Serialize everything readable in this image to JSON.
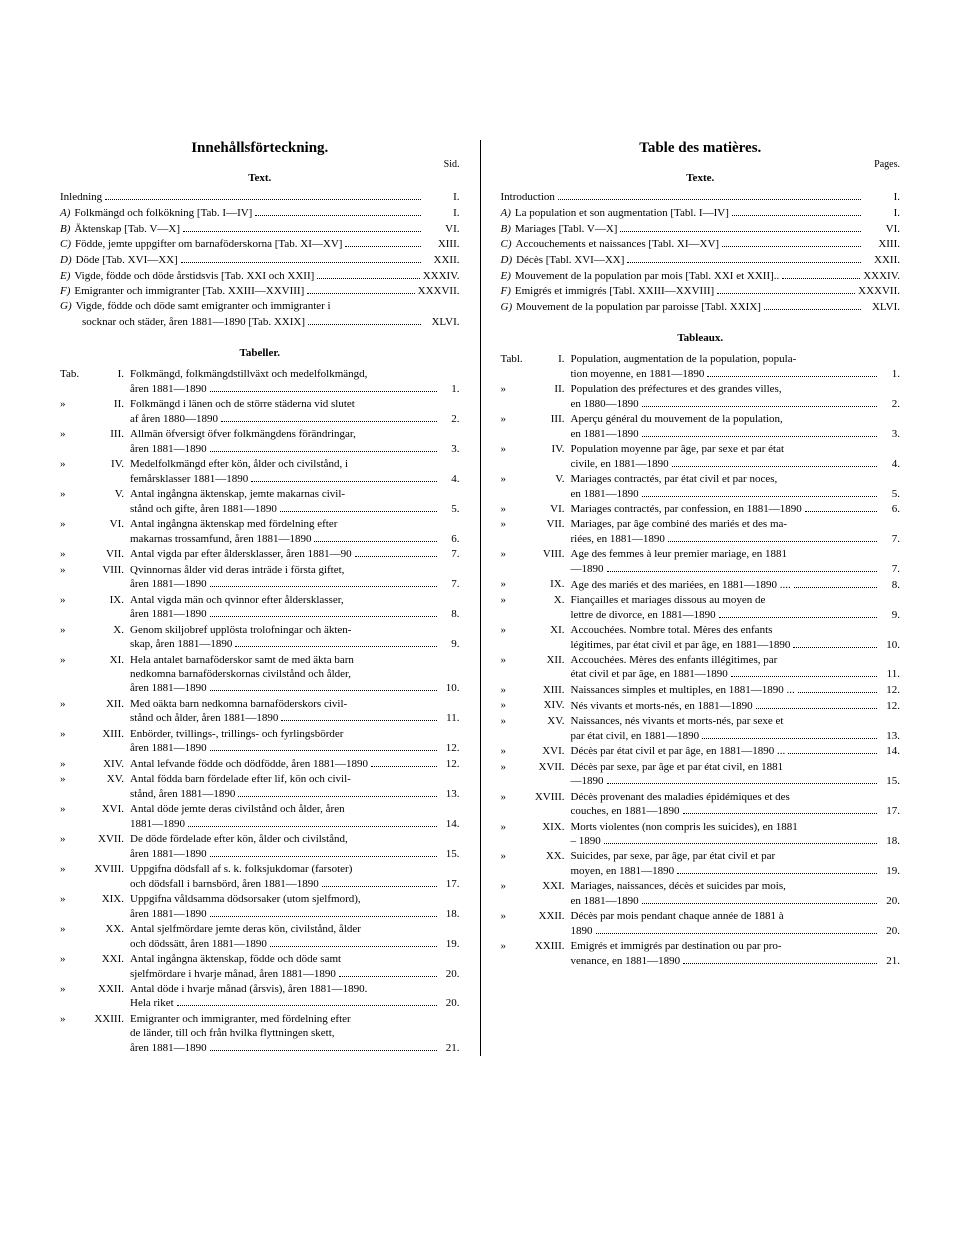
{
  "left": {
    "title": "Innehållsförteckning.",
    "pageLabel": "Sid.",
    "subhead": "Text.",
    "text_entries": [
      {
        "prefix": "",
        "label": "Inledning",
        "page": "I."
      },
      {
        "prefix": "A)",
        "label": "Folkmängd och folkökning [Tab. I—IV]",
        "page": "I."
      },
      {
        "prefix": "B)",
        "label": "Äktenskap [Tab. V—X]",
        "page": "VI."
      },
      {
        "prefix": "C)",
        "label": "Födde, jemte uppgifter om barnaföderskorna [Tab. XI—XV]",
        "page": "XIII."
      },
      {
        "prefix": "D)",
        "label": "Döde [Tab. XVI—XX]",
        "page": "XXII."
      },
      {
        "prefix": "E)",
        "label": "Vigde, födde och döde årstidsvis [Tab. XXI och XXII]",
        "page": "XXXIV."
      },
      {
        "prefix": "F)",
        "label": "Emigranter och immigranter [Tab. XXIII—XXVIII]",
        "page": "XXXVII."
      },
      {
        "prefix": "G)",
        "label": "Vigde, födde och döde samt emigranter och immigranter i",
        "page": ""
      },
      {
        "prefix": "",
        "label": "socknar och städer, åren 1881—1890 [Tab. XXIX]",
        "page": "XLVI."
      }
    ],
    "subhead2": "Tabeller.",
    "tables": [
      {
        "c1": "Tab.",
        "c2": "I.",
        "lines": [
          "Folkmängd, folkmängdstillväxt och medelfolkmängd,",
          "åren 1881—1890"
        ],
        "page": "1."
      },
      {
        "c1": "»",
        "c2": "II.",
        "lines": [
          "Folkmängd i länen och de större städerna vid slutet",
          "af åren 1880—1890"
        ],
        "page": "2."
      },
      {
        "c1": "»",
        "c2": "III.",
        "lines": [
          "Allmän öfversigt öfver folkmängdens förändringar,",
          "åren 1881—1890"
        ],
        "page": "3."
      },
      {
        "c1": "»",
        "c2": "IV.",
        "lines": [
          "Medelfolkmängd efter kön, ålder och civilstånd, i",
          "femårsklasser 1881—1890"
        ],
        "page": "4."
      },
      {
        "c1": "»",
        "c2": "V.",
        "lines": [
          "Antal ingångna äktenskap, jemte makarnas civil-",
          "stånd och gifte, åren 1881—1890"
        ],
        "page": "5."
      },
      {
        "c1": "»",
        "c2": "VI.",
        "lines": [
          "Antal ingångna äktenskap med fördelning efter",
          "makarnas trossamfund, åren 1881—1890"
        ],
        "page": "6."
      },
      {
        "c1": "»",
        "c2": "VII.",
        "lines": [
          "Antal vigda par efter åldersklasser, åren 1881—90"
        ],
        "page": "7."
      },
      {
        "c1": "»",
        "c2": "VIII.",
        "lines": [
          "Qvinnornas ålder vid deras inträde i första giftet,",
          "åren 1881—1890"
        ],
        "page": "7."
      },
      {
        "c1": "»",
        "c2": "IX.",
        "lines": [
          "Antal vigda män och qvinnor efter åldersklasser,",
          "åren 1881—1890"
        ],
        "page": "8."
      },
      {
        "c1": "»",
        "c2": "X.",
        "lines": [
          "Genom skiljobref upplösta trolofningar och äkten-",
          "skap, åren 1881—1890"
        ],
        "page": "9."
      },
      {
        "c1": "»",
        "c2": "XI.",
        "lines": [
          "Hela antalet barnaföderskor samt de med äkta barn",
          "nedkomna barnaföderskornas civilstånd och ålder,",
          "åren 1881—1890"
        ],
        "page": "10."
      },
      {
        "c1": "»",
        "c2": "XII.",
        "lines": [
          "Med oäkta barn nedkomna barnaföderskors civil-",
          "stånd och ålder, åren 1881—1890"
        ],
        "page": "11."
      },
      {
        "c1": "»",
        "c2": "XIII.",
        "lines": [
          "Enbörder, tvillings-, trillings- och fyrlingsbörder",
          "åren 1881—1890"
        ],
        "page": "12."
      },
      {
        "c1": "»",
        "c2": "XIV.",
        "lines": [
          "Antal lefvande födde och dödfödde, åren 1881—1890"
        ],
        "page": "12."
      },
      {
        "c1": "»",
        "c2": "XV.",
        "lines": [
          "Antal födda barn fördelade efter lif, kön och civil-",
          "stånd, åren 1881—1890"
        ],
        "page": "13."
      },
      {
        "c1": "»",
        "c2": "XVI.",
        "lines": [
          "Antal döde jemte deras civilstånd och ålder, åren",
          "1881—1890"
        ],
        "page": "14."
      },
      {
        "c1": "»",
        "c2": "XVII.",
        "lines": [
          "De döde fördelade efter kön, ålder och civilstånd,",
          "åren 1881—1890"
        ],
        "page": "15."
      },
      {
        "c1": "»",
        "c2": "XVIII.",
        "lines": [
          "Uppgifna dödsfall af s. k. folksjukdomar (farsoter)",
          "och dödsfall i barnsbörd, åren 1881—1890"
        ],
        "page": "17."
      },
      {
        "c1": "»",
        "c2": "XIX.",
        "lines": [
          "Uppgifna våldsamma dödsorsaker (utom sjelfmord),",
          "åren 1881—1890"
        ],
        "page": "18."
      },
      {
        "c1": "»",
        "c2": "XX.",
        "lines": [
          "Antal sjelfmördare jemte deras kön, civilstånd, ålder",
          "och dödssätt, åren 1881—1890"
        ],
        "page": "19."
      },
      {
        "c1": "»",
        "c2": "XXI.",
        "lines": [
          "Antal ingångna äktenskap, födde och döde samt",
          "sjelfmördare i hvarje månad, åren 1881—1890"
        ],
        "page": "20."
      },
      {
        "c1": "»",
        "c2": "XXII.",
        "lines": [
          "Antal döde i hvarje månad (årsvis), åren 1881—1890.",
          "Hela riket"
        ],
        "page": "20."
      },
      {
        "c1": "»",
        "c2": "XXIII.",
        "lines": [
          "Emigranter och immigranter, med fördelning efter",
          "de länder, till och från hvilka flyttningen skett,",
          "åren 1881—1890"
        ],
        "page": "21."
      }
    ]
  },
  "right": {
    "title": "Table des matières.",
    "pageLabel": "Pages.",
    "subhead": "Texte.",
    "text_entries": [
      {
        "prefix": "",
        "label": "Introduction",
        "page": "I."
      },
      {
        "prefix": "A)",
        "label": "La population et son augmentation [Tabl. I—IV]",
        "page": "I."
      },
      {
        "prefix": "B)",
        "label": "Mariages [Tabl. V—X]",
        "page": "VI."
      },
      {
        "prefix": "C)",
        "label": "Accouchements et naissances [Tabl. XI—XV]",
        "page": "XIII."
      },
      {
        "prefix": "D)",
        "label": "Décès [Tabl. XVI—XX]",
        "page": "XXII."
      },
      {
        "prefix": "E)",
        "label": "Mouvement de la population par mois [Tabl. XXI et XXII]..",
        "page": "XXXIV."
      },
      {
        "prefix": "F)",
        "label": "Emigrés et immigrés [Tabl. XXIII—XXVIII]",
        "page": "XXXVII."
      },
      {
        "prefix": "G)",
        "label": "Mouvement de la population par paroisse [Tabl. XXIX]",
        "page": "XLVI."
      }
    ],
    "subhead2": "Tableaux.",
    "tables": [
      {
        "c1": "Tabl.",
        "c2": "I.",
        "lines": [
          "Population, augmentation de la population, popula-",
          "tion moyenne, en 1881—1890"
        ],
        "page": "1."
      },
      {
        "c1": "»",
        "c2": "II.",
        "lines": [
          "Population des préfectures et des grandes villes,",
          "en 1880—1890"
        ],
        "page": "2."
      },
      {
        "c1": "»",
        "c2": "III.",
        "lines": [
          "Aperçu général du mouvement de la population,",
          "en 1881—1890"
        ],
        "page": "3."
      },
      {
        "c1": "»",
        "c2": "IV.",
        "lines": [
          "Population moyenne par âge, par sexe et par état",
          "civile, en 1881—1890"
        ],
        "page": "4."
      },
      {
        "c1": "»",
        "c2": "V.",
        "lines": [
          "Mariages contractés, par état civil et par noces,",
          "en 1881—1890"
        ],
        "page": "5."
      },
      {
        "c1": "»",
        "c2": "VI.",
        "lines": [
          "Mariages contractés, par confession, en 1881—1890"
        ],
        "page": "6."
      },
      {
        "c1": "»",
        "c2": "VII.",
        "lines": [
          "Mariages, par âge combiné des mariés et des ma-",
          "riées, en 1881—1890"
        ],
        "page": "7."
      },
      {
        "c1": "»",
        "c2": "VIII.",
        "lines": [
          "Age des femmes à leur premier mariage, en 1881",
          "—1890"
        ],
        "page": "7."
      },
      {
        "c1": "»",
        "c2": "IX.",
        "lines": [
          "Age des mariés et des mariées, en 1881—1890 ...."
        ],
        "page": "8."
      },
      {
        "c1": "»",
        "c2": "X.",
        "lines": [
          "Fiançailles et mariages dissous au moyen de",
          "lettre de divorce, en 1881—1890"
        ],
        "page": "9."
      },
      {
        "c1": "»",
        "c2": "XI.",
        "lines": [
          "Accouchées. Nombre total. Mères des enfants",
          "légitimes, par état civil et par âge, en 1881—1890"
        ],
        "page": "10."
      },
      {
        "c1": "»",
        "c2": "XII.",
        "lines": [
          "Accouchées. Mères des enfants illégitimes, par",
          "état civil et par âge, en 1881—1890"
        ],
        "page": "11."
      },
      {
        "c1": "»",
        "c2": "XIII.",
        "lines": [
          "Naissances simples et multiples, en 1881—1890 ..."
        ],
        "page": "12."
      },
      {
        "c1": "»",
        "c2": "XIV.",
        "lines": [
          "Nés vivants et morts-nés, en 1881—1890"
        ],
        "page": "12."
      },
      {
        "c1": "»",
        "c2": "XV.",
        "lines": [
          "Naissances, nés vivants et morts-nés, par sexe et",
          "par état civil, en 1881—1890"
        ],
        "page": "13."
      },
      {
        "c1": "»",
        "c2": "XVI.",
        "lines": [
          "Décès par état civil et par âge, en 1881—1890 ..."
        ],
        "page": "14."
      },
      {
        "c1": "»",
        "c2": "XVII.",
        "lines": [
          "Décès par sexe, par âge et par état civil, en 1881",
          "—1890"
        ],
        "page": "15."
      },
      {
        "c1": "»",
        "c2": "XVIII.",
        "lines": [
          "Décès provenant des maladies épidémiques et des",
          "couches, en 1881—1890"
        ],
        "page": "17."
      },
      {
        "c1": "»",
        "c2": "XIX.",
        "lines": [
          "Morts violentes (non compris les suicides), en 1881",
          "– 1890"
        ],
        "page": "18."
      },
      {
        "c1": "»",
        "c2": "XX.",
        "lines": [
          "Suicides, par sexe, par âge, par état civil et par",
          "moyen, en 1881—1890"
        ],
        "page": "19."
      },
      {
        "c1": "»",
        "c2": "XXI.",
        "lines": [
          "Mariages, naissances, décès et suicides par mois,",
          "en 1881—1890"
        ],
        "page": "20."
      },
      {
        "c1": "»",
        "c2": "XXII.",
        "lines": [
          "Décès par mois pendant chaque année de 1881 à",
          "1890"
        ],
        "page": "20."
      },
      {
        "c1": "»",
        "c2": "XXIII.",
        "lines": [
          "Emigrés et immigrés par destination ou par pro-",
          "venance, en 1881—1890"
        ],
        "page": "21."
      }
    ]
  }
}
